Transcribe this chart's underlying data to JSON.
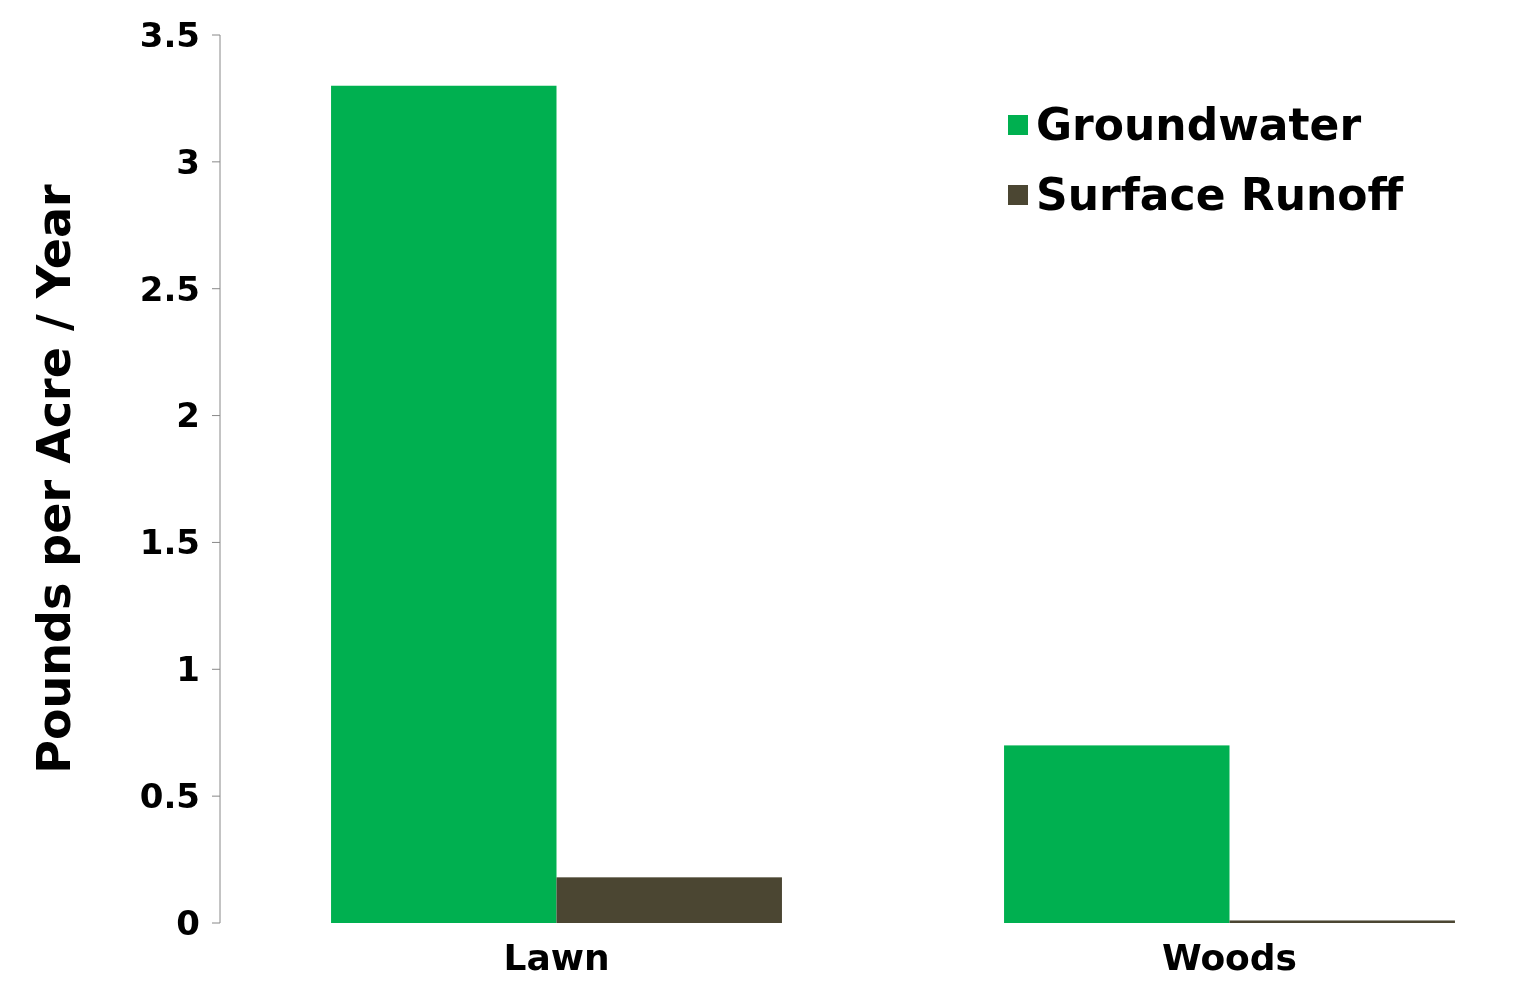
{
  "chart_data": {
    "type": "bar",
    "ylabel": "Pounds per Acre / Year",
    "categories": [
      "Lawn",
      "Woods"
    ],
    "series": [
      {
        "name": "Groundwater",
        "color": "#00b050",
        "values": [
          3.3,
          0.7
        ]
      },
      {
        "name": "Surface Runoff",
        "color": "#4b4632",
        "values": [
          0.18,
          0.01
        ]
      }
    ],
    "ylim": [
      0,
      3.5
    ],
    "yticks": [
      0,
      0.5,
      1,
      1.5,
      2,
      2.5,
      3,
      3.5
    ],
    "grid": false,
    "legend": "top right"
  }
}
